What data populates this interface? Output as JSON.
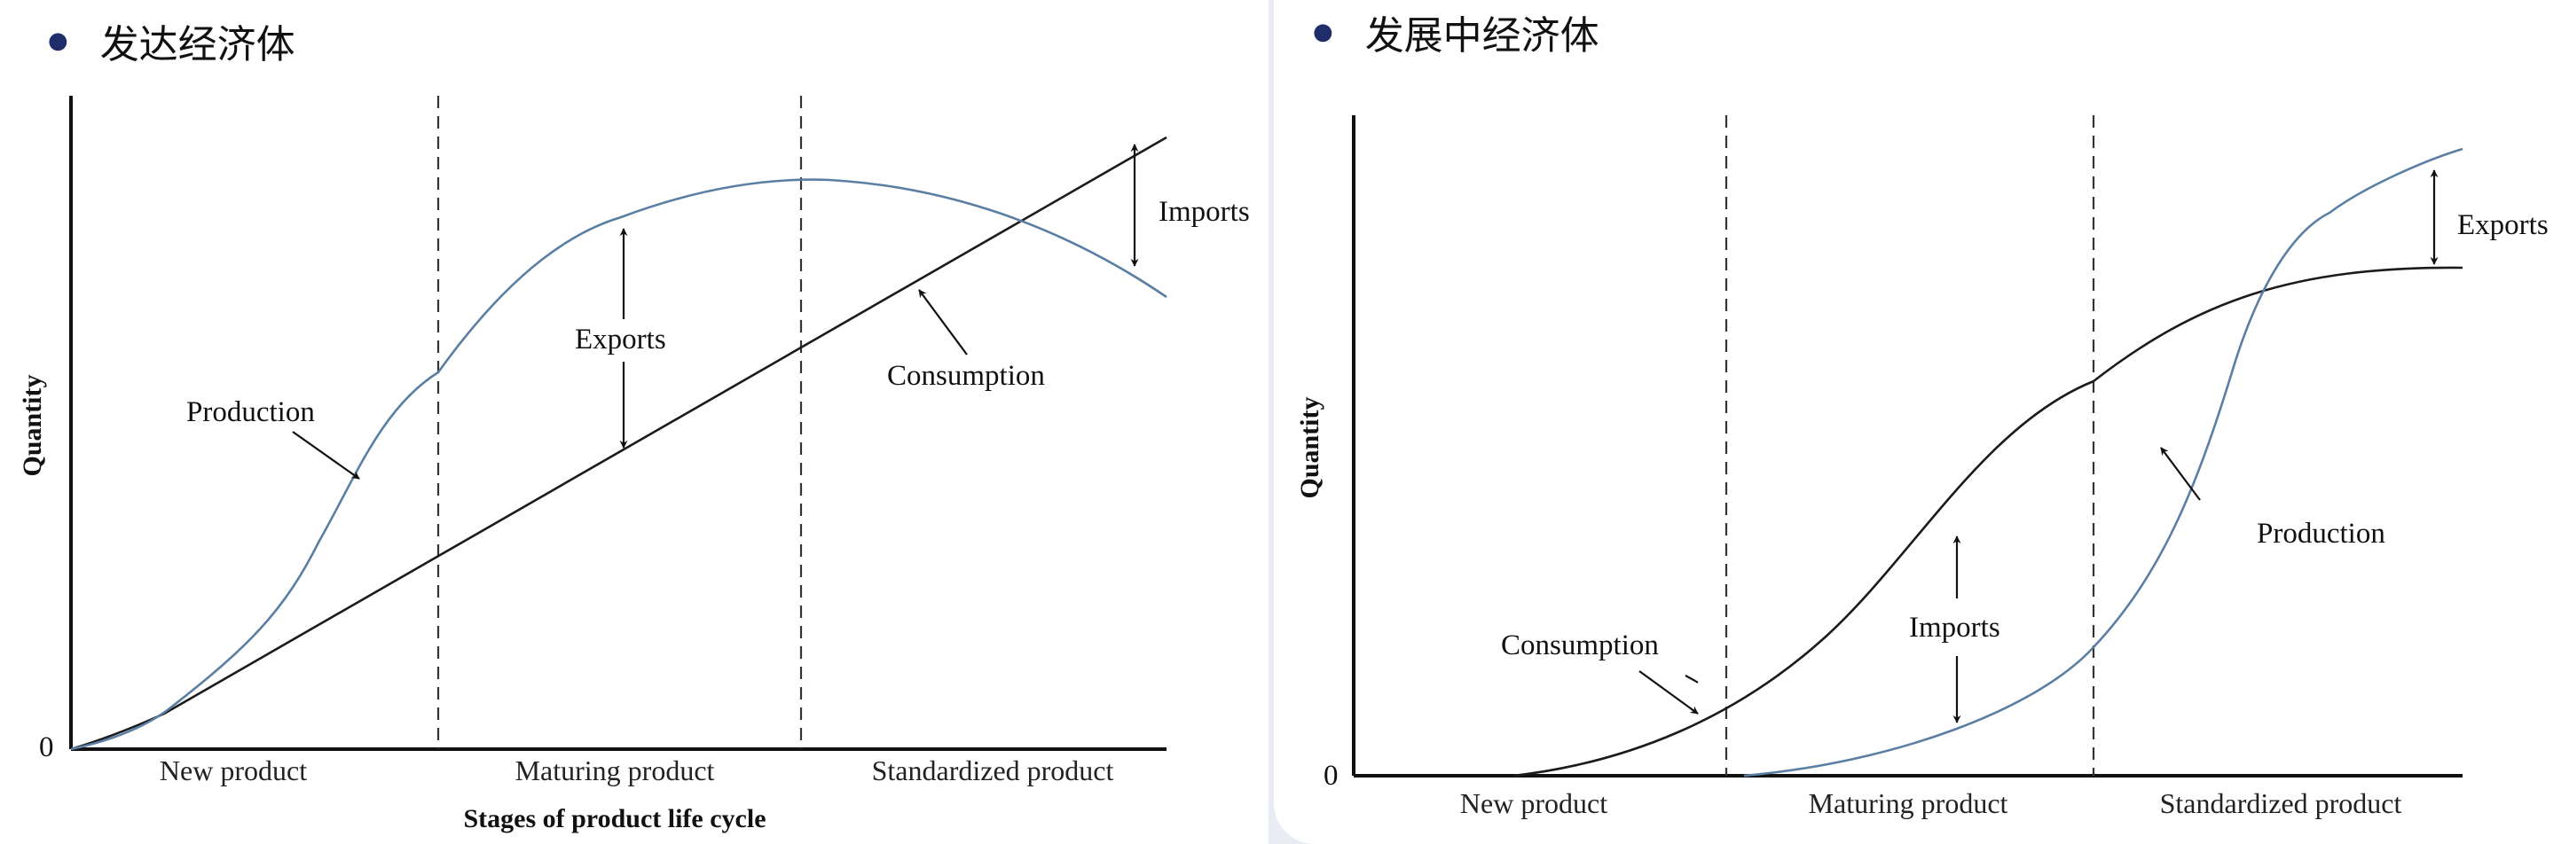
{
  "left": {
    "heading": "发达经济体",
    "y_axis_label": "Quantity",
    "origin_label": "0",
    "stages": [
      "New product",
      "Maturing product",
      "Standardized product"
    ],
    "x_axis_title": "Stages of product life cycle",
    "labels": {
      "production": "Production",
      "exports": "Exports",
      "consumption": "Consumption",
      "imports": "Imports"
    }
  },
  "right": {
    "heading": "发展中经济体",
    "y_axis_label": "Quantity",
    "origin_label": "0",
    "stages": [
      "New product",
      "Maturing product",
      "Standardized product"
    ],
    "labels": {
      "consumption": "Consumption",
      "imports": "Imports",
      "production": "Production",
      "exports": "Exports"
    }
  },
  "colors": {
    "production_curve": "#5a7fa3",
    "consumption_curve": "#1b1b1b",
    "bullet": "#1f2d6b",
    "background": "#e9ecf3"
  }
}
